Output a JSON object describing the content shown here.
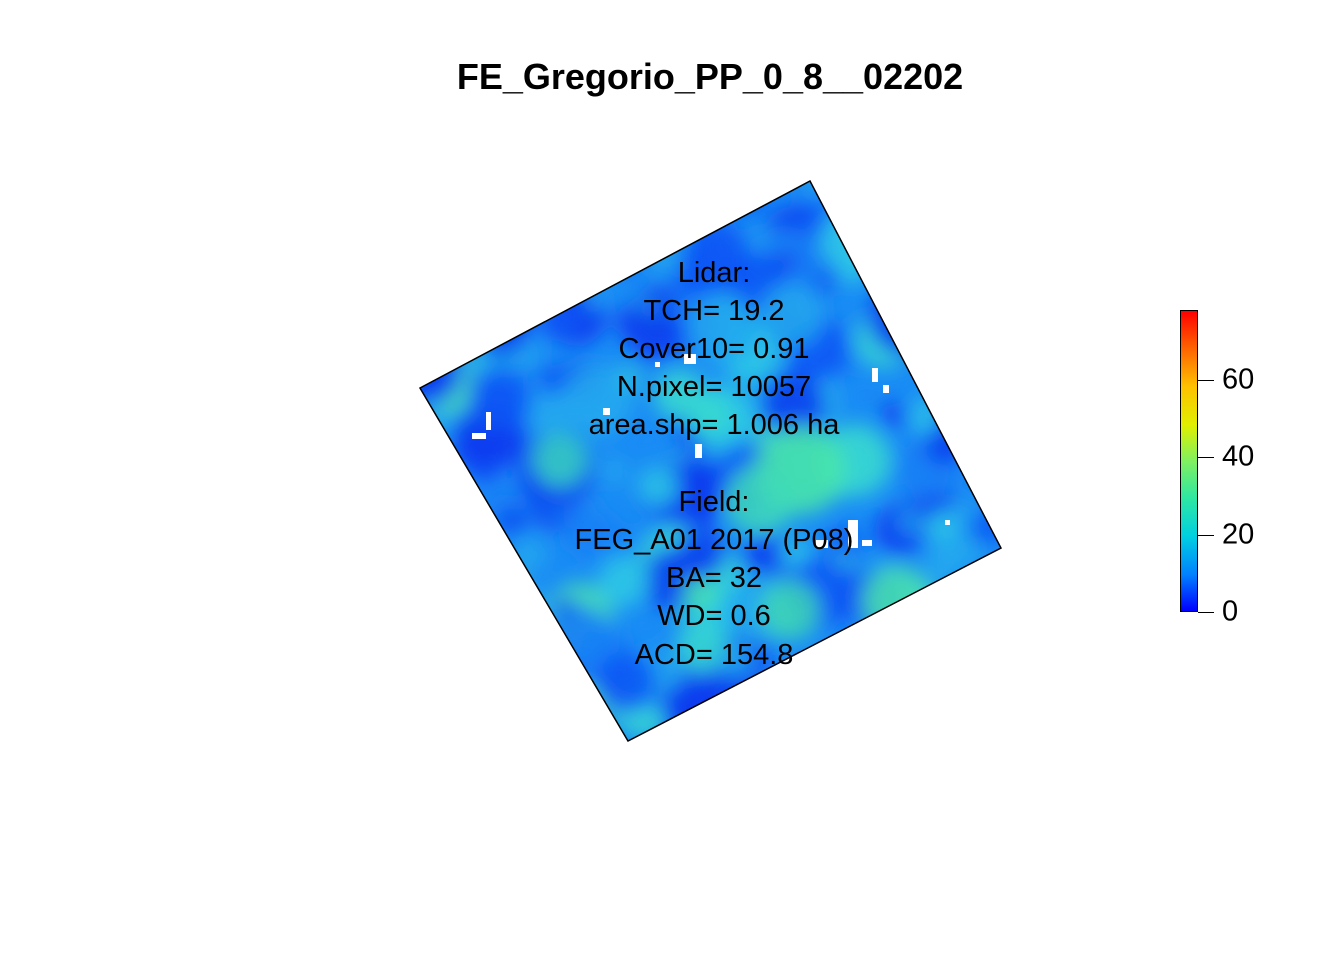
{
  "chart_data": {
    "type": "heatmap",
    "title": "FE_Gregorio_PP_0_8__02202",
    "colorbar": {
      "ticks": [
        0,
        20,
        40,
        60
      ],
      "range": [
        0,
        78
      ],
      "colors": [
        "#0000ff",
        "#0080ff",
        "#00d0e0",
        "#30e8a0",
        "#80f060",
        "#e0f000",
        "#ffc000",
        "#ff6000",
        "#ff0000"
      ]
    },
    "annotations": {
      "lidar": [
        "Lidar:",
        "TCH= 19.2",
        "Cover10= 0.91",
        "N.pixel= 10057",
        "area.shp= 1.006 ha"
      ],
      "field": [
        "Field:",
        "FEG_A01 2017 (P08)",
        "BA= 32",
        "WD= 0.6",
        "ACD= 154.8"
      ]
    }
  }
}
